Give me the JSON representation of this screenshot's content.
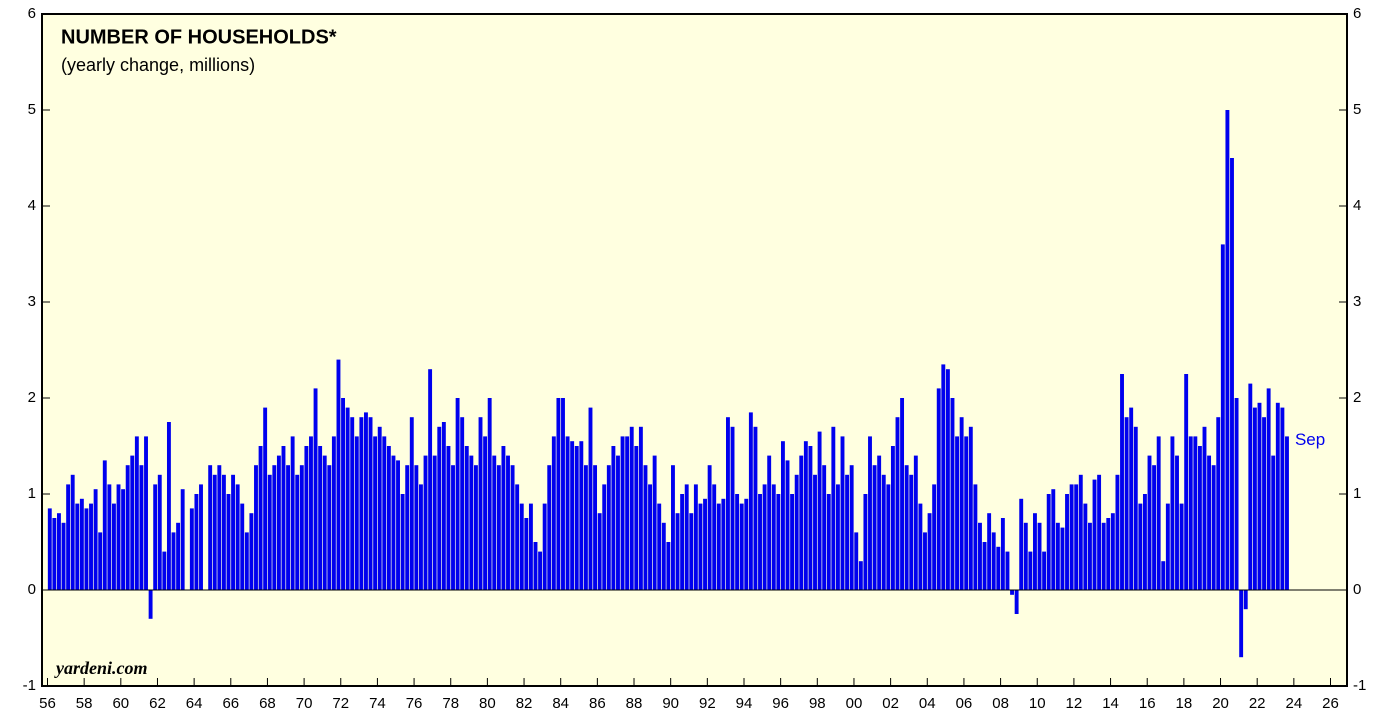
{
  "chart_data": {
    "type": "bar",
    "title": "NUMBER OF HOUSEHOLDS*",
    "subtitle": "(yearly change, millions)",
    "source": "yardeni.com",
    "end_label": "Sep",
    "color": "#0000ee",
    "x": [
      1956.125,
      1956.375,
      1956.625,
      1956.875,
      1957.125,
      1957.375,
      1957.625,
      1957.875,
      1958.125,
      1958.375,
      1958.625,
      1958.875,
      1959.125,
      1959.375,
      1959.625,
      1959.875,
      1960.125,
      1960.375,
      1960.625,
      1960.875,
      1961.125,
      1961.375,
      1961.625,
      1961.875,
      1962.125,
      1962.375,
      1962.625,
      1962.875,
      1963.125,
      1963.375,
      1963.625,
      1963.875,
      1964.125,
      1964.375,
      1964.625,
      1964.875,
      1965.125,
      1965.375,
      1965.625,
      1965.875,
      1966.125,
      1966.375,
      1966.625,
      1966.875,
      1967.125,
      1967.375,
      1967.625,
      1967.875,
      1968.125,
      1968.375,
      1968.625,
      1968.875,
      1969.125,
      1969.375,
      1969.625,
      1969.875,
      1970.125,
      1970.375,
      1970.625,
      1970.875,
      1971.125,
      1971.375,
      1971.625,
      1971.875,
      1972.125,
      1972.375,
      1972.625,
      1972.875,
      1973.125,
      1973.375,
      1973.625,
      1973.875,
      1974.125,
      1974.375,
      1974.625,
      1974.875,
      1975.125,
      1975.375,
      1975.625,
      1975.875,
      1976.125,
      1976.375,
      1976.625,
      1976.875,
      1977.125,
      1977.375,
      1977.625,
      1977.875,
      1978.125,
      1978.375,
      1978.625,
      1978.875,
      1979.125,
      1979.375,
      1979.625,
      1979.875,
      1980.125,
      1980.375,
      1980.625,
      1980.875,
      1981.125,
      1981.375,
      1981.625,
      1981.875,
      1982.125,
      1982.375,
      1982.625,
      1982.875,
      1983.125,
      1983.375,
      1983.625,
      1983.875,
      1984.125,
      1984.375,
      1984.625,
      1984.875,
      1985.125,
      1985.375,
      1985.625,
      1985.875,
      1986.125,
      1986.375,
      1986.625,
      1986.875,
      1987.125,
      1987.375,
      1987.625,
      1987.875,
      1988.125,
      1988.375,
      1988.625,
      1988.875,
      1989.125,
      1989.375,
      1989.625,
      1989.875,
      1990.125,
      1990.375,
      1990.625,
      1990.875,
      1991.125,
      1991.375,
      1991.625,
      1991.875,
      1992.125,
      1992.375,
      1992.625,
      1992.875,
      1993.125,
      1993.375,
      1993.625,
      1993.875,
      1994.125,
      1994.375,
      1994.625,
      1994.875,
      1995.125,
      1995.375,
      1995.625,
      1995.875,
      1996.125,
      1996.375,
      1996.625,
      1996.875,
      1997.125,
      1997.375,
      1997.625,
      1997.875,
      1998.125,
      1998.375,
      1998.625,
      1998.875,
      1999.125,
      1999.375,
      1999.625,
      1999.875,
      2000.125,
      2000.375,
      2000.625,
      2000.875,
      2001.125,
      2001.375,
      2001.625,
      2001.875,
      2002.125,
      2002.375,
      2002.625,
      2002.875,
      2003.125,
      2003.375,
      2003.625,
      2003.875,
      2004.125,
      2004.375,
      2004.625,
      2004.875,
      2005.125,
      2005.375,
      2005.625,
      2005.875,
      2006.125,
      2006.375,
      2006.625,
      2006.875,
      2007.125,
      2007.375,
      2007.625,
      2007.875,
      2008.125,
      2008.375,
      2008.625,
      2008.875,
      2009.125,
      2009.375,
      2009.625,
      2009.875,
      2010.125,
      2010.375,
      2010.625,
      2010.875,
      2011.125,
      2011.375,
      2011.625,
      2011.875,
      2012.125,
      2012.375,
      2012.625,
      2012.875,
      2013.125,
      2013.375,
      2013.625,
      2013.875,
      2014.125,
      2014.375,
      2014.625,
      2014.875,
      2015.125,
      2015.375,
      2015.625,
      2015.875,
      2016.125,
      2016.375,
      2016.625,
      2016.875,
      2017.125,
      2017.375,
      2017.625,
      2017.875,
      2018.125,
      2018.375,
      2018.625,
      2018.875,
      2019.125,
      2019.375,
      2019.625,
      2019.875,
      2020.125,
      2020.375,
      2020.625,
      2020.875,
      2021.125,
      2021.375,
      2021.625,
      2021.875,
      2022.125,
      2022.375,
      2022.625,
      2022.875,
      2023.125,
      2023.375,
      2023.625
    ],
    "values": [
      0.85,
      0.75,
      0.8,
      0.7,
      1.1,
      1.2,
      0.9,
      0.95,
      0.85,
      0.9,
      1.05,
      0.6,
      1.35,
      1.1,
      0.9,
      1.1,
      1.05,
      1.3,
      1.4,
      1.6,
      1.3,
      1.6,
      -0.3,
      1.1,
      1.2,
      0.4,
      1.75,
      0.6,
      0.7,
      1.05,
      0,
      0.85,
      1.0,
      1.1,
      0,
      1.3,
      1.2,
      1.3,
      1.2,
      1.0,
      1.2,
      1.1,
      0.9,
      0.6,
      0.8,
      1.3,
      1.5,
      1.9,
      1.2,
      1.3,
      1.4,
      1.5,
      1.3,
      1.6,
      1.2,
      1.3,
      1.5,
      1.6,
      2.1,
      1.5,
      1.4,
      1.3,
      1.6,
      2.4,
      2.0,
      1.9,
      1.8,
      1.6,
      1.8,
      1.85,
      1.8,
      1.6,
      1.7,
      1.6,
      1.5,
      1.4,
      1.35,
      1.0,
      1.3,
      1.8,
      1.3,
      1.1,
      1.4,
      2.3,
      1.4,
      1.7,
      1.75,
      1.5,
      1.3,
      2.0,
      1.8,
      1.5,
      1.4,
      1.3,
      1.8,
      1.6,
      2.0,
      1.4,
      1.3,
      1.5,
      1.4,
      1.3,
      1.1,
      0.9,
      0.75,
      0.9,
      0.5,
      0.4,
      0.9,
      1.3,
      1.6,
      2.0,
      2.0,
      1.6,
      1.55,
      1.5,
      1.55,
      1.3,
      1.9,
      1.3,
      0.8,
      1.1,
      1.3,
      1.5,
      1.4,
      1.6,
      1.6,
      1.7,
      1.5,
      1.7,
      1.3,
      1.1,
      1.4,
      0.9,
      0.7,
      0.5,
      1.3,
      0.8,
      1.0,
      1.1,
      0.8,
      1.1,
      0.9,
      0.95,
      1.3,
      1.1,
      0.9,
      0.95,
      1.8,
      1.7,
      1.0,
      0.9,
      0.95,
      1.85,
      1.7,
      1.0,
      1.1,
      1.4,
      1.1,
      1.0,
      1.55,
      1.35,
      1.0,
      1.2,
      1.4,
      1.55,
      1.5,
      1.2,
      1.65,
      1.3,
      1.0,
      1.7,
      1.1,
      1.6,
      1.2,
      1.3,
      0.6,
      0.3,
      1.0,
      1.6,
      1.3,
      1.4,
      1.2,
      1.1,
      1.5,
      1.8,
      2.0,
      1.3,
      1.2,
      1.4,
      0.9,
      0.6,
      0.8,
      1.1,
      2.1,
      2.35,
      2.3,
      2.0,
      1.6,
      1.8,
      1.6,
      1.7,
      1.1,
      0.7,
      0.5,
      0.8,
      0.6,
      0.45,
      0.75,
      0.4,
      -0.05,
      -0.25,
      0.95,
      0.7,
      0.4,
      0.8,
      0.7,
      0.4,
      1.0,
      1.05,
      0.7,
      0.65,
      1.0,
      1.1,
      1.1,
      1.2,
      0.9,
      0.7,
      1.15,
      1.2,
      0.7,
      0.75,
      0.8,
      1.2,
      2.25,
      1.8,
      1.9,
      1.7,
      0.9,
      1.0,
      1.4,
      1.3,
      1.6,
      0.3,
      0.9,
      1.6,
      1.4,
      0.9,
      2.25,
      1.6,
      1.6,
      1.5,
      1.7,
      1.4,
      1.3,
      1.8,
      3.6,
      5.0,
      4.5,
      2.0,
      -0.7,
      -0.2,
      2.15,
      1.9,
      1.95,
      1.8,
      2.1,
      1.4,
      1.95,
      1.9,
      1.6
    ],
    "xlim": [
      1955.7,
      2026.9
    ],
    "xticks": [
      {
        "value": 1956,
        "label": "56"
      },
      {
        "value": 1958,
        "label": "58"
      },
      {
        "value": 1960,
        "label": "60"
      },
      {
        "value": 1962,
        "label": "62"
      },
      {
        "value": 1964,
        "label": "64"
      },
      {
        "value": 1966,
        "label": "66"
      },
      {
        "value": 1968,
        "label": "68"
      },
      {
        "value": 1970,
        "label": "70"
      },
      {
        "value": 1972,
        "label": "72"
      },
      {
        "value": 1974,
        "label": "74"
      },
      {
        "value": 1976,
        "label": "76"
      },
      {
        "value": 1978,
        "label": "78"
      },
      {
        "value": 1980,
        "label": "80"
      },
      {
        "value": 1982,
        "label": "82"
      },
      {
        "value": 1984,
        "label": "84"
      },
      {
        "value": 1986,
        "label": "86"
      },
      {
        "value": 1988,
        "label": "88"
      },
      {
        "value": 1990,
        "label": "90"
      },
      {
        "value": 1992,
        "label": "92"
      },
      {
        "value": 1994,
        "label": "94"
      },
      {
        "value": 1996,
        "label": "96"
      },
      {
        "value": 1998,
        "label": "98"
      },
      {
        "value": 2000,
        "label": "00"
      },
      {
        "value": 2002,
        "label": "02"
      },
      {
        "value": 2004,
        "label": "04"
      },
      {
        "value": 2006,
        "label": "06"
      },
      {
        "value": 2008,
        "label": "08"
      },
      {
        "value": 2010,
        "label": "10"
      },
      {
        "value": 2012,
        "label": "12"
      },
      {
        "value": 2014,
        "label": "14"
      },
      {
        "value": 2016,
        "label": "16"
      },
      {
        "value": 2018,
        "label": "18"
      },
      {
        "value": 2020,
        "label": "20"
      },
      {
        "value": 2022,
        "label": "22"
      },
      {
        "value": 2024,
        "label": "24"
      },
      {
        "value": 2026,
        "label": "26"
      }
    ],
    "ylim": [
      -1,
      6
    ],
    "yticks": [
      -1,
      0,
      1,
      2,
      3,
      4,
      5,
      6
    ],
    "grid": false
  }
}
